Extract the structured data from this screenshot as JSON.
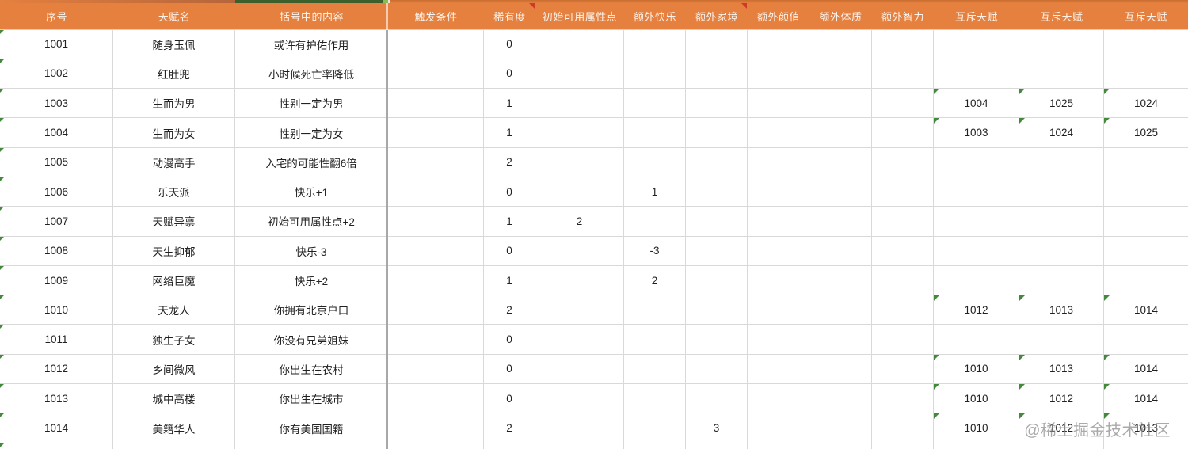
{
  "watermark": {
    "text": "@稀土掘金技术社区"
  },
  "colors": {
    "header_bg": "#e5803f",
    "header_text": "#fcf4ec",
    "grid": "#d9d9d9",
    "grid_dark": "#a8a8a8",
    "text": "#212121",
    "green_marker": "#44883c",
    "red_marker": "#cf3a28",
    "strip_green": "#3d5f2c",
    "strip_green_light": "#8abb55",
    "watermark": "#8a8a8a"
  },
  "table": {
    "columns": [
      {
        "label": "序号",
        "comment": false
      },
      {
        "label": "天赋名",
        "comment": false
      },
      {
        "label": "括号中的内容",
        "comment": false
      },
      {
        "label": "触发条件",
        "comment": false
      },
      {
        "label": "稀有度",
        "comment": true
      },
      {
        "label": "初始可用属性点",
        "comment": false
      },
      {
        "label": "额外快乐",
        "comment": false
      },
      {
        "label": "额外家境",
        "comment": true
      },
      {
        "label": "额外颜值",
        "comment": false
      },
      {
        "label": "额外体质",
        "comment": false
      },
      {
        "label": "额外智力",
        "comment": false
      },
      {
        "label": "互斥天赋",
        "comment": false
      },
      {
        "label": "互斥天赋",
        "comment": false
      },
      {
        "label": "互斥天赋",
        "comment": false
      }
    ],
    "rows": [
      {
        "id": "1001",
        "name": "随身玉佩",
        "desc": "或许有护佑作用",
        "trigger": "",
        "rarity": "0",
        "attr_points": "",
        "extra_happy": "",
        "extra_family": "",
        "extra_looks": "",
        "extra_body": "",
        "extra_int": "",
        "excl_1": "",
        "excl_2": "",
        "excl_3": ""
      },
      {
        "id": "1002",
        "name": "红肚兜",
        "desc": "小时候死亡率降低",
        "trigger": "",
        "rarity": "0",
        "attr_points": "",
        "extra_happy": "",
        "extra_family": "",
        "extra_looks": "",
        "extra_body": "",
        "extra_int": "",
        "excl_1": "",
        "excl_2": "",
        "excl_3": ""
      },
      {
        "id": "1003",
        "name": "生而为男",
        "desc": "性别一定为男",
        "trigger": "",
        "rarity": "1",
        "attr_points": "",
        "extra_happy": "",
        "extra_family": "",
        "extra_looks": "",
        "extra_body": "",
        "extra_int": "",
        "excl_1": "1004",
        "excl_2": "1025",
        "excl_3": "1024"
      },
      {
        "id": "1004",
        "name": "生而为女",
        "desc": "性别一定为女",
        "trigger": "",
        "rarity": "1",
        "attr_points": "",
        "extra_happy": "",
        "extra_family": "",
        "extra_looks": "",
        "extra_body": "",
        "extra_int": "",
        "excl_1": "1003",
        "excl_2": "1024",
        "excl_3": "1025"
      },
      {
        "id": "1005",
        "name": "动漫高手",
        "desc": "入宅的可能性翻6倍",
        "trigger": "",
        "rarity": "2",
        "attr_points": "",
        "extra_happy": "",
        "extra_family": "",
        "extra_looks": "",
        "extra_body": "",
        "extra_int": "",
        "excl_1": "",
        "excl_2": "",
        "excl_3": ""
      },
      {
        "id": "1006",
        "name": "乐天派",
        "desc": "快乐+1",
        "trigger": "",
        "rarity": "0",
        "attr_points": "",
        "extra_happy": "1",
        "extra_family": "",
        "extra_looks": "",
        "extra_body": "",
        "extra_int": "",
        "excl_1": "",
        "excl_2": "",
        "excl_3": ""
      },
      {
        "id": "1007",
        "name": "天赋异禀",
        "desc": "初始可用属性点+2",
        "trigger": "",
        "rarity": "1",
        "attr_points": "2",
        "extra_happy": "",
        "extra_family": "",
        "extra_looks": "",
        "extra_body": "",
        "extra_int": "",
        "excl_1": "",
        "excl_2": "",
        "excl_3": ""
      },
      {
        "id": "1008",
        "name": "天生抑郁",
        "desc": "快乐-3",
        "trigger": "",
        "rarity": "0",
        "attr_points": "",
        "extra_happy": "-3",
        "extra_family": "",
        "extra_looks": "",
        "extra_body": "",
        "extra_int": "",
        "excl_1": "",
        "excl_2": "",
        "excl_3": ""
      },
      {
        "id": "1009",
        "name": "网络巨魔",
        "desc": "快乐+2",
        "trigger": "",
        "rarity": "1",
        "attr_points": "",
        "extra_happy": "2",
        "extra_family": "",
        "extra_looks": "",
        "extra_body": "",
        "extra_int": "",
        "excl_1": "",
        "excl_2": "",
        "excl_3": ""
      },
      {
        "id": "1010",
        "name": "天龙人",
        "desc": "你拥有北京户口",
        "trigger": "",
        "rarity": "2",
        "attr_points": "",
        "extra_happy": "",
        "extra_family": "",
        "extra_looks": "",
        "extra_body": "",
        "extra_int": "",
        "excl_1": "1012",
        "excl_2": "1013",
        "excl_3": "1014"
      },
      {
        "id": "1011",
        "name": "独生子女",
        "desc": "你没有兄弟姐妹",
        "trigger": "",
        "rarity": "0",
        "attr_points": "",
        "extra_happy": "",
        "extra_family": "",
        "extra_looks": "",
        "extra_body": "",
        "extra_int": "",
        "excl_1": "",
        "excl_2": "",
        "excl_3": ""
      },
      {
        "id": "1012",
        "name": "乡间微风",
        "desc": "你出生在农村",
        "trigger": "",
        "rarity": "0",
        "attr_points": "",
        "extra_happy": "",
        "extra_family": "",
        "extra_looks": "",
        "extra_body": "",
        "extra_int": "",
        "excl_1": "1010",
        "excl_2": "1013",
        "excl_3": "1014"
      },
      {
        "id": "1013",
        "name": "城中高楼",
        "desc": "你出生在城市",
        "trigger": "",
        "rarity": "0",
        "attr_points": "",
        "extra_happy": "",
        "extra_family": "",
        "extra_looks": "",
        "extra_body": "",
        "extra_int": "",
        "excl_1": "1010",
        "excl_2": "1012",
        "excl_3": "1014"
      },
      {
        "id": "1014",
        "name": "美籍华人",
        "desc": "你有美国国籍",
        "trigger": "",
        "rarity": "2",
        "attr_points": "",
        "extra_happy": "",
        "extra_family": "3",
        "extra_looks": "",
        "extra_body": "",
        "extra_int": "",
        "excl_1": "1010",
        "excl_2": "1012",
        "excl_3": "1013"
      }
    ]
  }
}
